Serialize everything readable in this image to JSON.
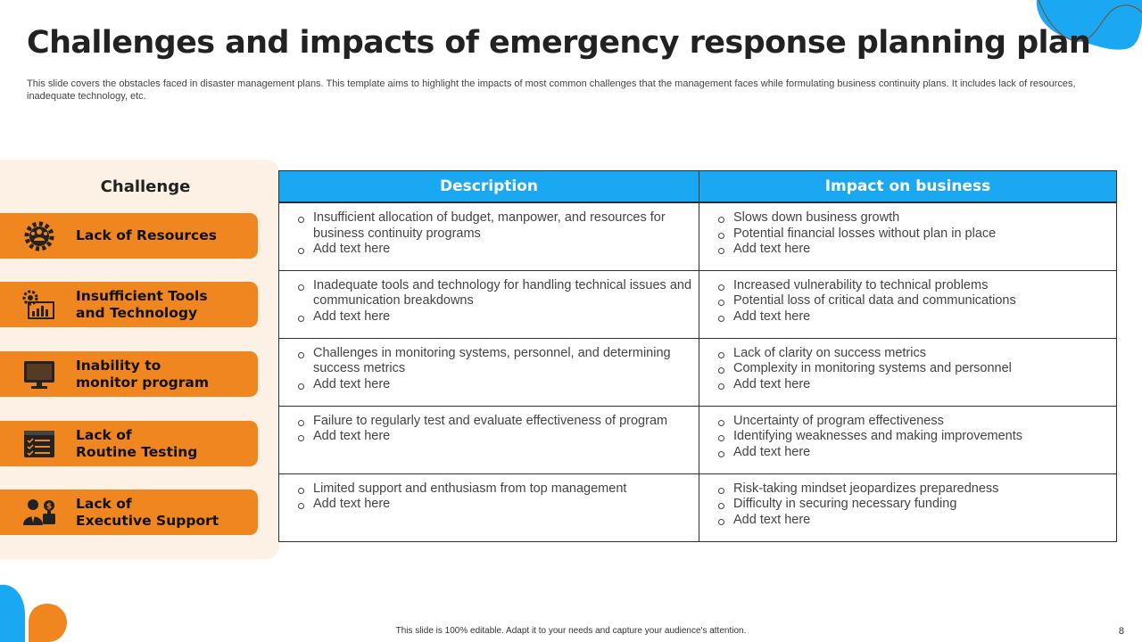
{
  "slide": {
    "title": "Challenges and impacts of emergency response planning plan",
    "subtitle": "This slide covers the obstacles faced in disaster management plans. This template aims to highlight the impacts of most common challenges that the management faces while formulating business continuity plans. It includes lack of resources, inadequate technology, etc.",
    "footer": "This slide is 100% editable.  Adapt it to your needs and capture your audience's attention.",
    "page_number": "8"
  },
  "colors": {
    "accent_orange": "#f0861f",
    "accent_blue": "#1aa8f2",
    "panel_bg": "#fdf0e4"
  },
  "challenge_header": "Challenge",
  "challenges": [
    {
      "label": "Lack of Resources",
      "icon": "team-gear-icon"
    },
    {
      "label": "Insufficient Tools\nand Technology",
      "icon": "tools-dashboard-icon"
    },
    {
      "label": "Inability to\nmonitor  program",
      "icon": "monitor-icon"
    },
    {
      "label": "Lack of\nRoutine Testing",
      "icon": "checklist-icon"
    },
    {
      "label": "Lack of\nExecutive Support",
      "icon": "executive-funding-icon"
    }
  ],
  "table": {
    "headers": {
      "description": "Description",
      "impact": "Impact on business"
    },
    "rows": [
      {
        "description": [
          "Insufficient allocation of budget, manpower, and resources for business continuity programs",
          "Add text here"
        ],
        "impact": [
          "Slows down business growth",
          "Potential financial losses without  plan in place",
          "Add text here"
        ]
      },
      {
        "description": [
          "Inadequate tools and technology for handling technical issues and communication breakdowns",
          "Add text here"
        ],
        "impact": [
          "Increased vulnerability  to technical problems",
          "Potential loss of critical data and communications",
          "Add text here"
        ]
      },
      {
        "description": [
          "Challenges in monitoring systems, personnel, and determining success metrics",
          "Add text here"
        ],
        "impact": [
          "Lack of clarity on success metrics",
          "Complexity in monitoring systems and personnel",
          "Add text here"
        ]
      },
      {
        "description": [
          "Failure to regularly test and evaluate   effectiveness of  program",
          "Add text here"
        ],
        "impact": [
          "Uncertainty of program effectiveness",
          "Identifying  weaknesses and making improvements",
          "Add text here"
        ]
      },
      {
        "description": [
          "Limited support and enthusiasm from top management",
          "Add text here"
        ],
        "impact": [
          "Risk-taking mindset jeopardizes preparedness",
          "Difficulty in securing necessary funding",
          "Add text here"
        ]
      }
    ]
  }
}
